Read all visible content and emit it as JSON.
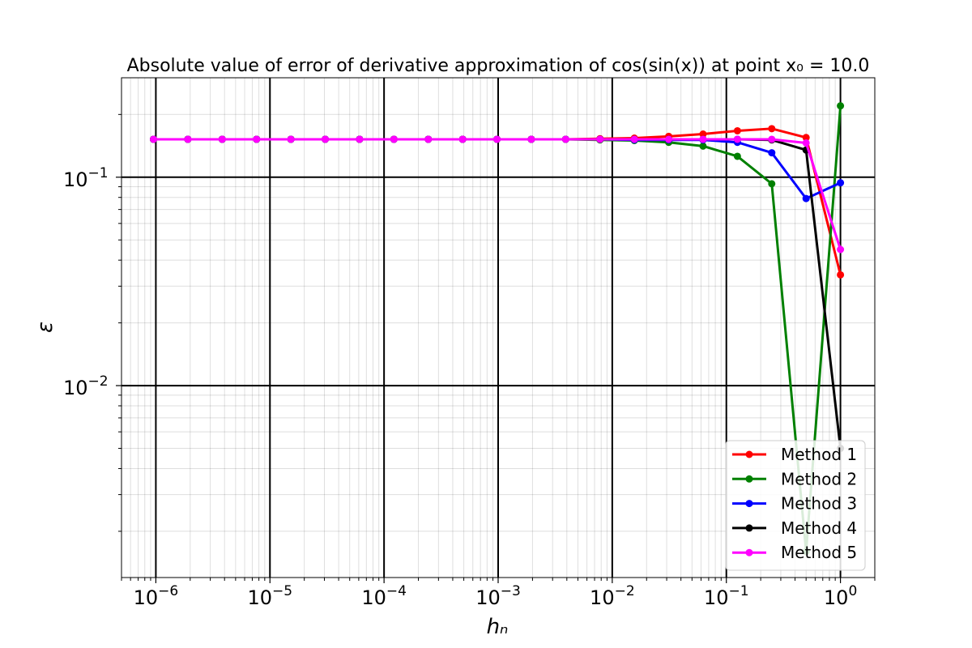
{
  "chart_data": {
    "type": "line",
    "title": "Absolute value of error of derivative approximation of cos(sin(x)) at point x₀ = 10.0",
    "xlabel": "hₙ",
    "ylabel": "ε",
    "xscale": "log",
    "yscale": "log",
    "xlim": [
      5e-07,
      2
    ],
    "ylim": [
      0.0012,
      0.3
    ],
    "x_ticks": [
      {
        "value": 1e-06,
        "base": "10",
        "exp": "−6"
      },
      {
        "value": 1e-05,
        "base": "10",
        "exp": "−5"
      },
      {
        "value": 0.0001,
        "base": "10",
        "exp": "−4"
      },
      {
        "value": 0.001,
        "base": "10",
        "exp": "−3"
      },
      {
        "value": 0.01,
        "base": "10",
        "exp": "−2"
      },
      {
        "value": 0.1,
        "base": "10",
        "exp": "−1"
      },
      {
        "value": 1,
        "base": "10",
        "exp": "0"
      }
    ],
    "y_ticks": [
      {
        "value": 0.1,
        "base": "10",
        "exp": "−1"
      },
      {
        "value": 0.01,
        "base": "10",
        "exp": "−2"
      }
    ],
    "grid": true,
    "legend_position": "bottom-right",
    "x": [
      9.5367e-07,
      1.9073e-06,
      3.8147e-06,
      7.6294e-06,
      1.5259e-05,
      3.0518e-05,
      6.1035e-05,
      0.00012207,
      0.00024414,
      0.00048828,
      0.00097656,
      0.0019531,
      0.0039063,
      0.0078125,
      0.015625,
      0.03125,
      0.0625,
      0.125,
      0.25,
      0.5,
      1.0
    ],
    "series": [
      {
        "name": "Method 1",
        "color": "#ff0000",
        "values": [
          0.152,
          0.152,
          0.152,
          0.152,
          0.152,
          0.152,
          0.152,
          0.152,
          0.152,
          0.152,
          0.152,
          0.152,
          0.152,
          0.153,
          0.154,
          0.157,
          0.161,
          0.167,
          0.171,
          0.155,
          0.034
        ]
      },
      {
        "name": "Method 2",
        "color": "#008000",
        "values": [
          0.152,
          0.152,
          0.152,
          0.152,
          0.152,
          0.152,
          0.152,
          0.152,
          0.152,
          0.152,
          0.152,
          0.152,
          0.152,
          0.151,
          0.15,
          0.147,
          0.141,
          0.126,
          0.093,
          0.0016,
          0.22
        ]
      },
      {
        "name": "Method 3",
        "color": "#0000ff",
        "values": [
          0.152,
          0.152,
          0.152,
          0.152,
          0.152,
          0.152,
          0.152,
          0.152,
          0.152,
          0.152,
          0.152,
          0.152,
          0.152,
          0.152,
          0.151,
          0.151,
          0.151,
          0.147,
          0.131,
          0.079,
          0.094
        ]
      },
      {
        "name": "Method 4",
        "color": "#000000",
        "values": [
          0.152,
          0.152,
          0.152,
          0.152,
          0.152,
          0.152,
          0.152,
          0.152,
          0.152,
          0.152,
          0.152,
          0.152,
          0.152,
          0.152,
          0.152,
          0.152,
          0.152,
          0.152,
          0.151,
          0.135,
          0.005
        ]
      },
      {
        "name": "Method 5",
        "color": "#ff00ff",
        "values": [
          0.152,
          0.152,
          0.152,
          0.152,
          0.152,
          0.152,
          0.152,
          0.152,
          0.152,
          0.152,
          0.152,
          0.152,
          0.152,
          0.152,
          0.152,
          0.152,
          0.152,
          0.152,
          0.152,
          0.146,
          0.045
        ]
      }
    ]
  }
}
